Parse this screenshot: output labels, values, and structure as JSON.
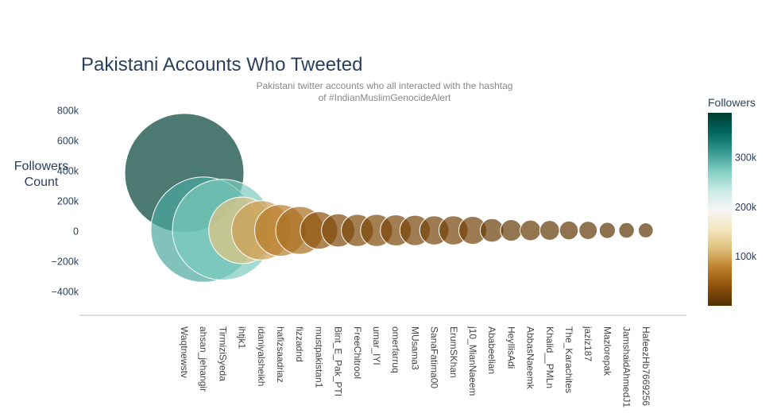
{
  "chart_data": {
    "type": "scatter",
    "title": "Pakistani Accounts Who Tweeted",
    "subtitle": [
      "Pakistani twitter accounts who all interacted with the hashtag",
      "of #IndianMuslimGenocideAlert"
    ],
    "xlabel": "",
    "ylabel": [
      "Followers",
      "Count"
    ],
    "ylim": [
      -550000,
      850000
    ],
    "y_ticks": [
      {
        "v": 800000,
        "label": "800k"
      },
      {
        "v": 600000,
        "label": "600k"
      },
      {
        "v": 400000,
        "label": "400k"
      },
      {
        "v": 200000,
        "label": "200k"
      },
      {
        "v": 0,
        "label": "0"
      },
      {
        "v": -200000,
        "label": "−200k"
      },
      {
        "v": -400000,
        "label": "−400k"
      }
    ],
    "grid": false,
    "legend": "colorbar-right",
    "colorbar": {
      "title": "Followers",
      "range": [
        0,
        390000
      ],
      "ticks": [
        {
          "v": 100000,
          "label": "100k"
        },
        {
          "v": 200000,
          "label": "200k"
        },
        {
          "v": 300000,
          "label": "300k"
        }
      ],
      "colorscale": [
        "#543005",
        "#8c510a",
        "#bf812d",
        "#dfc27d",
        "#f6e8c3",
        "#f5f5f5",
        "#c7eae5",
        "#80cdc1",
        "#35978f",
        "#01665e",
        "#003c30"
      ]
    },
    "points": [
      {
        "name": "Waqtnewstv",
        "y": 385000,
        "size": 385000
      },
      {
        "name": "ahsan_jehangir",
        "y": 10000,
        "size": 300000
      },
      {
        "name": "TirmiziSyeda",
        "y": 10000,
        "size": 275000
      },
      {
        "name": "ihtjk1",
        "y": 5000,
        "size": 120000
      },
      {
        "name": "idaniyalsheikh",
        "y": 5000,
        "size": 95000
      },
      {
        "name": "hafizsaadriaz",
        "y": 5000,
        "size": 72000
      },
      {
        "name": "fizzadnd",
        "y": 5000,
        "size": 62000
      },
      {
        "name": "mustpakistan1",
        "y": 5000,
        "size": 38000
      },
      {
        "name": "Bint_E_Pak_PTI",
        "y": 5000,
        "size": 30000
      },
      {
        "name": "FreeChitrool",
        "y": 5000,
        "size": 28000
      },
      {
        "name": "umar_IYI",
        "y": 5000,
        "size": 28000
      },
      {
        "name": "omerfarruq",
        "y": 5000,
        "size": 26000
      },
      {
        "name": "MUsama3",
        "y": 5000,
        "size": 25000
      },
      {
        "name": "SanaFatima00",
        "y": 5000,
        "size": 23000
      },
      {
        "name": "ErumSKhan",
        "y": 5000,
        "size": 23000
      },
      {
        "name": "j10_MianNaeem",
        "y": 5000,
        "size": 21000
      },
      {
        "name": "Ababeelian",
        "y": 5000,
        "size": 15000
      },
      {
        "name": "HeyIlisAdi",
        "y": 5000,
        "size": 12500
      },
      {
        "name": "AbbasNaeemk",
        "y": 5000,
        "size": 11500
      },
      {
        "name": "Khalid__PMLn",
        "y": 5000,
        "size": 10500
      },
      {
        "name": "The_Karachites",
        "y": 5000,
        "size": 9500
      },
      {
        "name": "jaziz187",
        "y": 5000,
        "size": 9000
      },
      {
        "name": "Mazlorepak",
        "y": 5000,
        "size": 7000
      },
      {
        "name": "JamshaidAhmedJ1",
        "y": 5000,
        "size": 6500
      },
      {
        "name": "HafeezHb7669256",
        "y": 5000,
        "size": 6000
      }
    ]
  }
}
